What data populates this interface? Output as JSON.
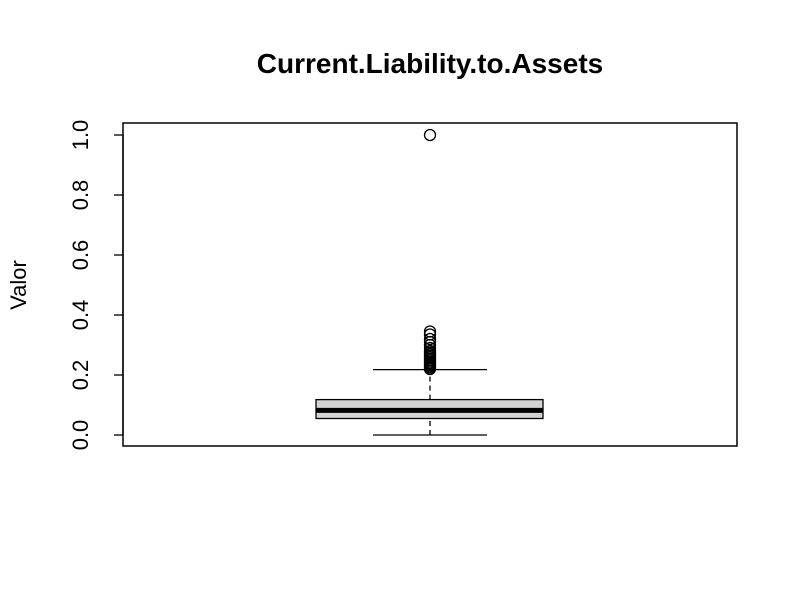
{
  "chart_data": {
    "type": "boxplot",
    "title": "Current.Liability.to.Assets",
    "xlabel": "",
    "ylabel": "Valor",
    "ylim": [
      -0.04,
      1.04
    ],
    "yticks": [
      "0.0",
      "0.2",
      "0.4",
      "0.6",
      "0.8",
      "1.0"
    ],
    "ytick_values": [
      0.0,
      0.2,
      0.4,
      0.6,
      0.8,
      1.0
    ],
    "grid": false,
    "box": {
      "lower_whisker": 0.0,
      "q1": 0.055,
      "median": 0.082,
      "q3": 0.118,
      "upper_whisker": 0.218,
      "box_fill": "#d3d3d3"
    },
    "outliers": [
      0.22,
      0.225,
      0.23,
      0.235,
      0.24,
      0.245,
      0.25,
      0.255,
      0.26,
      0.265,
      0.27,
      0.275,
      0.28,
      0.29,
      0.3,
      0.31,
      0.32,
      0.335,
      0.345,
      1.0
    ]
  }
}
